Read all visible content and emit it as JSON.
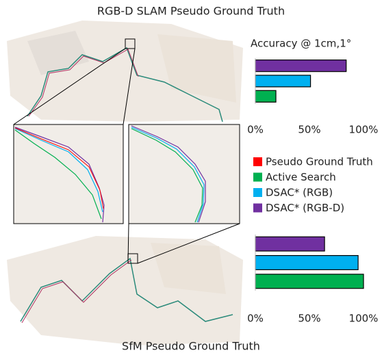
{
  "captions": {
    "top": "RGB-D SLAM Pseudo Ground Truth",
    "bottom": "SfM Pseudo Ground Truth"
  },
  "legend": [
    {
      "name": "Pseudo Ground Truth",
      "color": "#ff0000"
    },
    {
      "name": "Active Search",
      "color": "#00b050"
    },
    {
      "name": "DSAC* (RGB)",
      "color": "#00b0f0"
    },
    {
      "name": "DSAC* (RGB-D)",
      "color": "#7030a0"
    }
  ],
  "chart_data": [
    {
      "type": "bar",
      "horizontal": true,
      "title": "Accuracy @ 1cm,1°",
      "values": [
        84,
        51,
        19
      ],
      "colors": [
        "#7030a0",
        "#00b0f0",
        "#00b050"
      ],
      "xlim": [
        0,
        100
      ],
      "xticks": [
        {
          "value": 0,
          "label": "0%"
        },
        {
          "value": 50,
          "label": "50%"
        },
        {
          "value": 100,
          "label": "100%"
        }
      ]
    },
    {
      "type": "bar",
      "horizontal": true,
      "values": [
        64,
        95,
        100
      ],
      "colors": [
        "#7030a0",
        "#00b0f0",
        "#00b050"
      ],
      "xlim": [
        0,
        100
      ],
      "xticks": [
        {
          "value": 0,
          "label": "0%"
        },
        {
          "value": 50,
          "label": "50%"
        },
        {
          "value": 100,
          "label": "100%"
        }
      ]
    }
  ]
}
